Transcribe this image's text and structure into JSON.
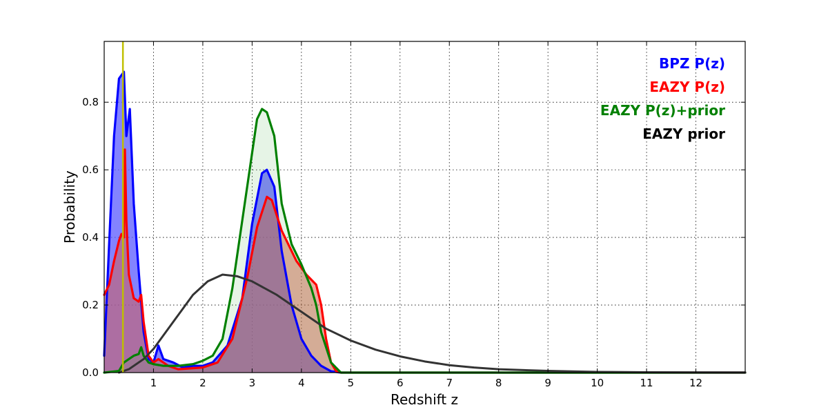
{
  "chart_data": {
    "type": "line",
    "xlabel": "Redshift z",
    "ylabel": "Probability",
    "xlim": [
      0,
      13
    ],
    "ylim": [
      0,
      0.98
    ],
    "grid": true,
    "grid_style": "dotted",
    "legend_placement": "top-right",
    "x_ticks": [
      "1",
      "2",
      "3",
      "4",
      "5",
      "6",
      "7",
      "8",
      "9",
      "10",
      "11",
      "12"
    ],
    "y_ticks": [
      "0.0",
      "0.2",
      "0.4",
      "0.6",
      "0.8"
    ],
    "reference_line": {
      "x": 0.38,
      "color": "#bfbf00"
    },
    "series": [
      {
        "name": "BPZ P(z)",
        "color": "#0000ff",
        "fill": "#5a5aff",
        "fill_opacity": 0.75,
        "points": [
          [
            0,
            0.05
          ],
          [
            0.1,
            0.38
          ],
          [
            0.2,
            0.7
          ],
          [
            0.3,
            0.87
          ],
          [
            0.4,
            0.89
          ],
          [
            0.45,
            0.7
          ],
          [
            0.52,
            0.78
          ],
          [
            0.6,
            0.5
          ],
          [
            0.7,
            0.3
          ],
          [
            0.8,
            0.12
          ],
          [
            0.9,
            0.04
          ],
          [
            1.0,
            0.03
          ],
          [
            1.1,
            0.08
          ],
          [
            1.2,
            0.04
          ],
          [
            1.4,
            0.03
          ],
          [
            1.6,
            0.015
          ],
          [
            1.8,
            0.02
          ],
          [
            2.0,
            0.02
          ],
          [
            2.2,
            0.03
          ],
          [
            2.5,
            0.08
          ],
          [
            2.8,
            0.22
          ],
          [
            3.0,
            0.44
          ],
          [
            3.2,
            0.59
          ],
          [
            3.3,
            0.6
          ],
          [
            3.45,
            0.55
          ],
          [
            3.6,
            0.36
          ],
          [
            3.8,
            0.2
          ],
          [
            4.0,
            0.1
          ],
          [
            4.2,
            0.05
          ],
          [
            4.4,
            0.02
          ],
          [
            4.6,
            0.004
          ],
          [
            4.8,
            0.0
          ],
          [
            13,
            0.0
          ]
        ]
      },
      {
        "name": "EAZY P(z)",
        "color": "#ff0000",
        "fill": "#d85a46",
        "fill_opacity": 0.5,
        "points": [
          [
            0,
            0.23
          ],
          [
            0.1,
            0.26
          ],
          [
            0.2,
            0.33
          ],
          [
            0.3,
            0.39
          ],
          [
            0.35,
            0.41
          ],
          [
            0.4,
            0.4
          ],
          [
            0.42,
            0.66
          ],
          [
            0.45,
            0.45
          ],
          [
            0.5,
            0.29
          ],
          [
            0.6,
            0.22
          ],
          [
            0.7,
            0.21
          ],
          [
            0.75,
            0.23
          ],
          [
            0.8,
            0.15
          ],
          [
            0.9,
            0.05
          ],
          [
            1.0,
            0.03
          ],
          [
            1.1,
            0.04
          ],
          [
            1.3,
            0.02
          ],
          [
            1.5,
            0.01
          ],
          [
            2.0,
            0.015
          ],
          [
            2.3,
            0.03
          ],
          [
            2.6,
            0.1
          ],
          [
            2.9,
            0.28
          ],
          [
            3.1,
            0.43
          ],
          [
            3.3,
            0.52
          ],
          [
            3.4,
            0.51
          ],
          [
            3.6,
            0.42
          ],
          [
            3.9,
            0.33
          ],
          [
            4.1,
            0.29
          ],
          [
            4.3,
            0.26
          ],
          [
            4.4,
            0.2
          ],
          [
            4.5,
            0.1
          ],
          [
            4.6,
            0.03
          ],
          [
            4.7,
            0.005
          ],
          [
            4.8,
            0.0
          ],
          [
            13,
            0.0
          ]
        ]
      },
      {
        "name": "EAZY P(z)+prior",
        "color": "#008000",
        "fill": "#4fae4f",
        "fill_opacity": 0.14,
        "points": [
          [
            0,
            0.0
          ],
          [
            0.3,
            0.005
          ],
          [
            0.4,
            0.03
          ],
          [
            0.5,
            0.04
          ],
          [
            0.6,
            0.05
          ],
          [
            0.7,
            0.055
          ],
          [
            0.75,
            0.075
          ],
          [
            0.8,
            0.05
          ],
          [
            0.9,
            0.03
          ],
          [
            1.0,
            0.025
          ],
          [
            1.2,
            0.02
          ],
          [
            1.5,
            0.02
          ],
          [
            1.8,
            0.025
          ],
          [
            2.0,
            0.035
          ],
          [
            2.2,
            0.05
          ],
          [
            2.4,
            0.1
          ],
          [
            2.6,
            0.25
          ],
          [
            2.8,
            0.45
          ],
          [
            3.0,
            0.65
          ],
          [
            3.1,
            0.75
          ],
          [
            3.2,
            0.78
          ],
          [
            3.3,
            0.77
          ],
          [
            3.45,
            0.7
          ],
          [
            3.6,
            0.5
          ],
          [
            3.8,
            0.38
          ],
          [
            4.0,
            0.32
          ],
          [
            4.2,
            0.25
          ],
          [
            4.3,
            0.2
          ],
          [
            4.4,
            0.12
          ],
          [
            4.6,
            0.03
          ],
          [
            4.8,
            0.0
          ],
          [
            13,
            0.0
          ]
        ]
      },
      {
        "name": "EAZY prior",
        "color": "#333333",
        "fill": "none",
        "fill_opacity": 0,
        "points": [
          [
            0.3,
            0.0
          ],
          [
            0.5,
            0.01
          ],
          [
            0.8,
            0.04
          ],
          [
            1.0,
            0.07
          ],
          [
            1.2,
            0.11
          ],
          [
            1.5,
            0.17
          ],
          [
            1.8,
            0.23
          ],
          [
            2.1,
            0.27
          ],
          [
            2.4,
            0.29
          ],
          [
            2.7,
            0.285
          ],
          [
            3.0,
            0.27
          ],
          [
            3.5,
            0.23
          ],
          [
            4.0,
            0.18
          ],
          [
            4.5,
            0.13
          ],
          [
            5.0,
            0.095
          ],
          [
            5.5,
            0.068
          ],
          [
            6.0,
            0.048
          ],
          [
            6.5,
            0.033
          ],
          [
            7.0,
            0.022
          ],
          [
            7.5,
            0.015
          ],
          [
            8.0,
            0.01
          ],
          [
            9.0,
            0.005
          ],
          [
            10.0,
            0.002
          ],
          [
            11.0,
            0.001
          ],
          [
            12.0,
            0.0004
          ],
          [
            13.0,
            0.0002
          ]
        ]
      }
    ]
  }
}
